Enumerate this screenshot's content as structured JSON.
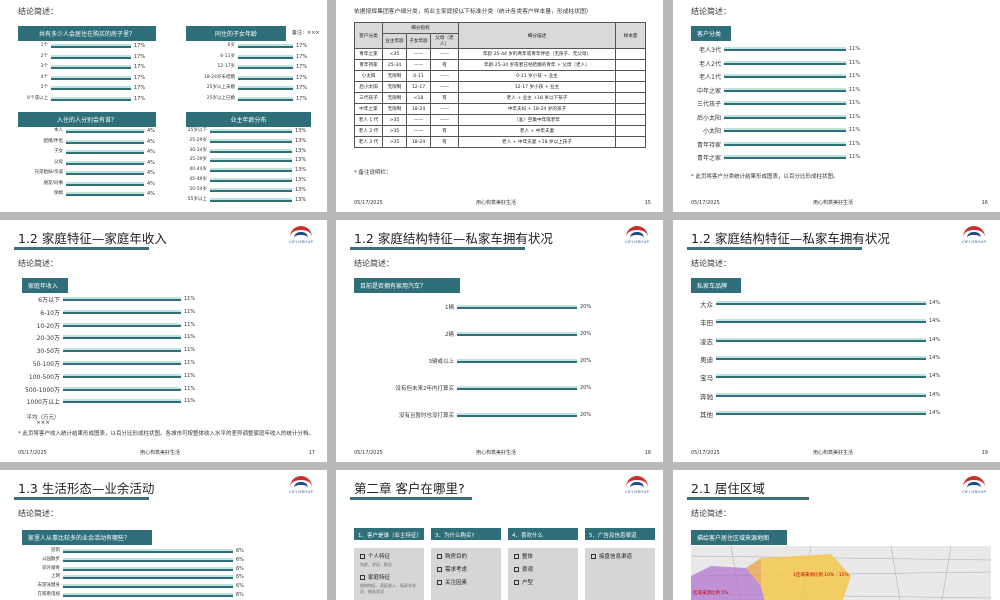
{
  "slide1": {
    "conclusion": "结论简述：",
    "chart1_title": "共有多少人会居住在购买的房子里？",
    "chart1_rows": [
      [
        "1个",
        "17%"
      ],
      [
        "2个",
        "17%"
      ],
      [
        "3个",
        "17%"
      ],
      [
        "4个",
        "17%"
      ],
      [
        "5个",
        "17%"
      ],
      [
        "6个或以上",
        "17%"
      ]
    ],
    "chart2_title": "同住的子女年龄",
    "chart2_note": "备注：×××",
    "chart2_rows": [
      [
        "6岁",
        "17%"
      ],
      [
        "6-11岁",
        "17%"
      ],
      [
        "12-17岁",
        "17%"
      ],
      [
        "18-24岁未结婚",
        "17%"
      ],
      [
        "25岁以上未婚",
        "17%"
      ],
      [
        "25岁以上已婚",
        "17%"
      ]
    ],
    "chart3_title": "入住的人分别会有谁？",
    "chart3_rows": [
      [
        "本人",
        "4%"
      ],
      [
        "配偶/伴侣",
        "4%"
      ],
      [
        "子女",
        "4%"
      ],
      [
        "父母",
        "4%"
      ],
      [
        "兄弟姐妹/亲戚",
        "4%"
      ],
      [
        "朋友/同事",
        "4%"
      ],
      [
        "保姆",
        "4%"
      ]
    ],
    "chart4_title": "业主年龄分布",
    "chart4_rows": [
      [
        "25岁以下",
        "13%"
      ],
      [
        "25-29岁",
        "13%"
      ],
      [
        "30-34岁",
        "13%"
      ],
      [
        "35-39岁",
        "13%"
      ],
      [
        "40-44岁",
        "13%"
      ],
      [
        "45-49岁",
        "13%"
      ],
      [
        "50-54岁",
        "13%"
      ],
      [
        "55岁以上",
        "13%"
      ]
    ]
  },
  "slide2": {
    "intro": "依据按辉集团客户细分类，将业主家庭按以下标准分类（统计各类客户样本量，形成柱状图）",
    "th_type": "客户分类",
    "th_indicator": "细分指标",
    "th_owner_age": "业主年龄",
    "th_child_age": "子女年龄",
    "th_parents": "父母（老人）",
    "th_desc": "细分描述",
    "th_sample": "样本量",
    "rows": [
      [
        "青年之家",
        "<35",
        "——",
        "——",
        "年龄 25-44 岁的青年或青年伴侣（无孩子、无父母）"
      ],
      [
        "青年持家",
        "25-34",
        "——",
        "有",
        "年龄 25-34 岁或者已经结婚的青年 + 父母（老人）"
      ],
      [
        "小太阳",
        "无限制",
        "0-11",
        "——",
        "0-11 岁小孩 + 业主"
      ],
      [
        "后小太阳",
        "无限制",
        "12-17",
        "——",
        "12-17 岁小孩 + 业主"
      ],
      [
        "三代孩子",
        "无限制",
        "<18",
        "有",
        "老人 + 业主 +18 岁以下孩子"
      ],
      [
        "中年之家",
        "无限制",
        "18-24",
        "——",
        "中年夫妇 + 18-24 岁的孩子"
      ],
      [
        "老人 1 代",
        ">35",
        "——",
        "——",
        "（准）空巢中年或老年"
      ],
      [
        "老人 2 代",
        ">35",
        "——",
        "有",
        "老人 + 中年夫妻"
      ],
      [
        "老人 3 代",
        ">35",
        "18-24",
        "有",
        "老人 + 中年夫妻 +18 岁以上孩子"
      ]
    ],
    "note": "* 备注说明栏：",
    "date": "05/17/2025",
    "motto": "用心构筑美好生活",
    "page": "15"
  },
  "slide3": {
    "conclusion": "结论简述：",
    "box": "客户分类",
    "rows": [
      [
        "老人3代",
        "11%"
      ],
      [
        "老人2代",
        "11%"
      ],
      [
        "老人1代",
        "11%"
      ],
      [
        "中年之家",
        "11%"
      ],
      [
        "三代孩子",
        "11%"
      ],
      [
        "后小太阳",
        "11%"
      ],
      [
        "小太阳",
        "11%"
      ],
      [
        "青年持家",
        "11%"
      ],
      [
        "青年之家",
        "11%"
      ]
    ],
    "note": "* 此页将客户分类统计结果形成图表，以百分比形成柱状图。",
    "date": "05/17/2025",
    "motto": "用心构筑美好生活",
    "page": "16"
  },
  "slide4": {
    "title": "1.2  家庭特征—家庭年收入",
    "conclusion": "结论简述：",
    "box": "家庭年收入",
    "rows": [
      [
        "6万以下",
        "11%"
      ],
      [
        "6-10万",
        "11%"
      ],
      [
        "10-20万",
        "11%"
      ],
      [
        "20-30万",
        "11%"
      ],
      [
        "30-50万",
        "11%"
      ],
      [
        "50-100万",
        "11%"
      ],
      [
        "100-500万",
        "11%"
      ],
      [
        "500-1000万",
        "11%"
      ],
      [
        "1000万以上",
        "11%"
      ]
    ],
    "avg_label": "平均（万元）",
    "avg_value": "×××",
    "note": "* 此页将客户收入统计结果形成图表，以百分比形成柱状图。各城市可按整体收入水平的差异调整家庭年收入的统计分档。",
    "date": "05/17/2025",
    "motto": "用心构筑美好生活",
    "page": "17",
    "logo_en": "CIFI GROUP",
    "logo_cn": "旭辉集团"
  },
  "slide5": {
    "title": "1.2  家庭结构特征—私家车拥有状况",
    "conclusion": "结论简述：",
    "box": "目前是否拥有家用汽车？",
    "rows": [
      [
        "1辆",
        "20%"
      ],
      [
        "2辆",
        "20%"
      ],
      [
        "3辆或以上",
        "20%"
      ],
      [
        "没有但未来2年内打算买",
        "20%"
      ],
      [
        "没有且暂时也没打算买",
        "20%"
      ]
    ],
    "date": "05/17/2025",
    "motto": "用心构筑美好生活",
    "page": "18"
  },
  "slide6": {
    "title": "1.2  家庭结构特征—私家车拥有状况",
    "conclusion": "结论简述：",
    "box": "私家车品牌",
    "rows": [
      [
        "大众",
        "14%"
      ],
      [
        "丰田",
        "14%"
      ],
      [
        "凌志",
        "14%"
      ],
      [
        "奥迪",
        "14%"
      ],
      [
        "宝马",
        "14%"
      ],
      [
        "奔驰",
        "14%"
      ],
      [
        "其他",
        "14%"
      ]
    ],
    "date": "05/17/2025",
    "motto": "用心构筑美好生活",
    "page": "19"
  },
  "slide7": {
    "title": "1.3  生活形态—业余活动",
    "conclusion": "结论简述：",
    "box": "家里人从事比较多的业余活动有哪些？",
    "rows": [
      [
        "逛街",
        "6%"
      ],
      [
        "公园散步",
        "6%"
      ],
      [
        "郊外踏青",
        "6%"
      ],
      [
        "上网",
        "6%"
      ],
      [
        "去游泳健身",
        "6%"
      ],
      [
        "在家看电视",
        "6%"
      ]
    ]
  },
  "slide8": {
    "title": "第二章  客户在哪里?",
    "cols": [
      {
        "h": "1、客户是谁（业主特征）",
        "items": [
          "个人特征",
          "家庭特征"
        ],
        "subs": [
          "年龄、学历、职业",
          "结构特征、家庭收入、私家车状况、服务状况"
        ]
      },
      {
        "h": "3、为什么购买?",
        "items": [
          "购房目的",
          "需求考虑",
          "关注因素"
        ],
        "subs": []
      },
      {
        "h": "4、喜欢什么",
        "items": [
          "整体",
          "景观",
          "户型"
        ],
        "subs": []
      },
      {
        "h": "5、广告及信息渠道",
        "items": [
          "接盘信息渠道"
        ],
        "subs": []
      }
    ]
  },
  "slide9": {
    "title": "2.1  居住区域",
    "conclusion": "结论简述：",
    "box": "描绘客户居住区域来源地图",
    "map_label1": "1区域来源比例 10% - 15%",
    "map_label2": "区域来源比例 5%"
  }
}
